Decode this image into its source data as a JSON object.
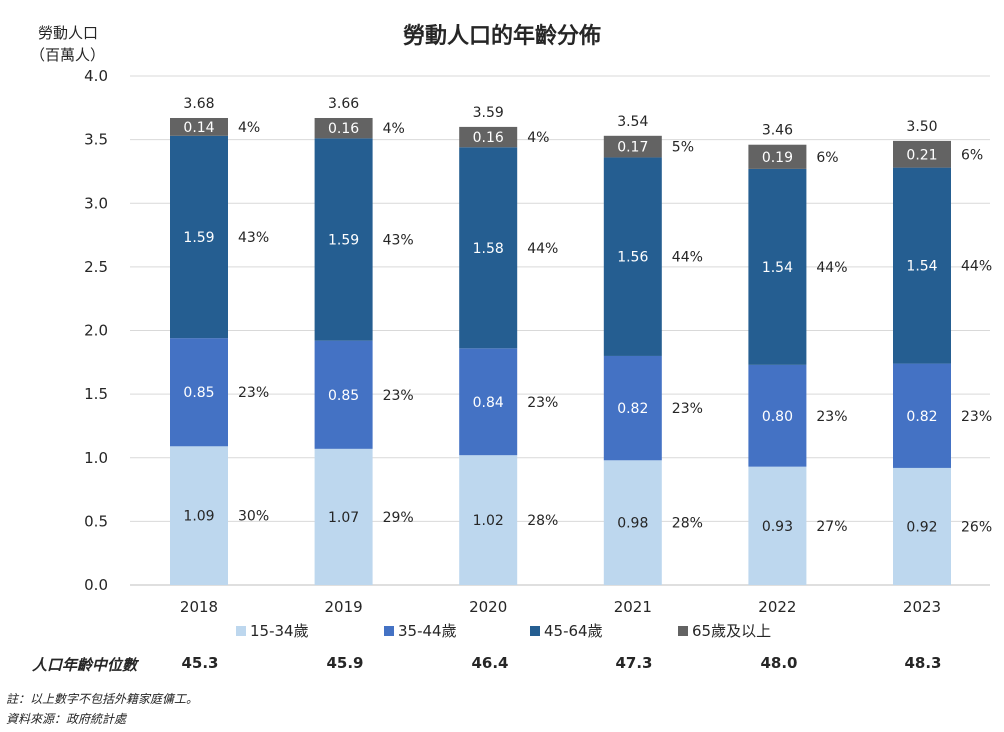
{
  "chart_data": {
    "type": "bar",
    "stacked": true,
    "title": "勞動人口的年齡分佈",
    "ylabel_line1": "勞動人口",
    "ylabel_line2": "（百萬人）",
    "ylim": [
      0,
      4.0
    ],
    "yticks": [
      "0.0",
      "0.5",
      "1.0",
      "1.5",
      "2.0",
      "2.5",
      "3.0",
      "3.5",
      "4.0"
    ],
    "grid": true,
    "legend_position": "bottom",
    "categories": [
      "2018",
      "2019",
      "2020",
      "2021",
      "2022",
      "2023"
    ],
    "totals": [
      "3.68",
      "3.66",
      "3.59",
      "3.54",
      "3.46",
      "3.50"
    ],
    "series": [
      {
        "name": "15-34歲",
        "color": "#bdd7ee",
        "values": [
          1.09,
          1.07,
          1.02,
          0.98,
          0.93,
          0.92
        ],
        "value_labels": [
          "1.09",
          "1.07",
          "1.02",
          "0.98",
          "0.93",
          "0.92"
        ],
        "pct_labels": [
          "30%",
          "29%",
          "28%",
          "28%",
          "27%",
          "26%"
        ]
      },
      {
        "name": "35-44歲",
        "color": "#4472c4",
        "values": [
          0.85,
          0.85,
          0.84,
          0.82,
          0.8,
          0.82
        ],
        "value_labels": [
          "0.85",
          "0.85",
          "0.84",
          "0.82",
          "0.80",
          "0.82"
        ],
        "pct_labels": [
          "23%",
          "23%",
          "23%",
          "23%",
          "23%",
          "23%"
        ]
      },
      {
        "name": "45-64歲",
        "color": "#255e91",
        "values": [
          1.59,
          1.59,
          1.58,
          1.56,
          1.54,
          1.54
        ],
        "value_labels": [
          "1.59",
          "1.59",
          "1.58",
          "1.56",
          "1.54",
          "1.54"
        ],
        "pct_labels": [
          "43%",
          "43%",
          "44%",
          "44%",
          "44%",
          "44%"
        ]
      },
      {
        "name": "65歲及以上",
        "color": "#636363",
        "values": [
          0.14,
          0.16,
          0.16,
          0.17,
          0.19,
          0.21
        ],
        "value_labels": [
          "0.14",
          "0.16",
          "0.16",
          "0.17",
          "0.19",
          "0.21"
        ],
        "pct_labels": [
          "4%",
          "4%",
          "4%",
          "5%",
          "6%",
          "6%"
        ]
      }
    ]
  },
  "median_age": {
    "label": "人口年齡中位數",
    "values": [
      "45.3",
      "45.9",
      "46.4",
      "47.3",
      "48.0",
      "48.3"
    ]
  },
  "notes": {
    "note": "註：以上數字不包括外籍家庭傭工。",
    "source": "資料來源：政府統計處"
  }
}
